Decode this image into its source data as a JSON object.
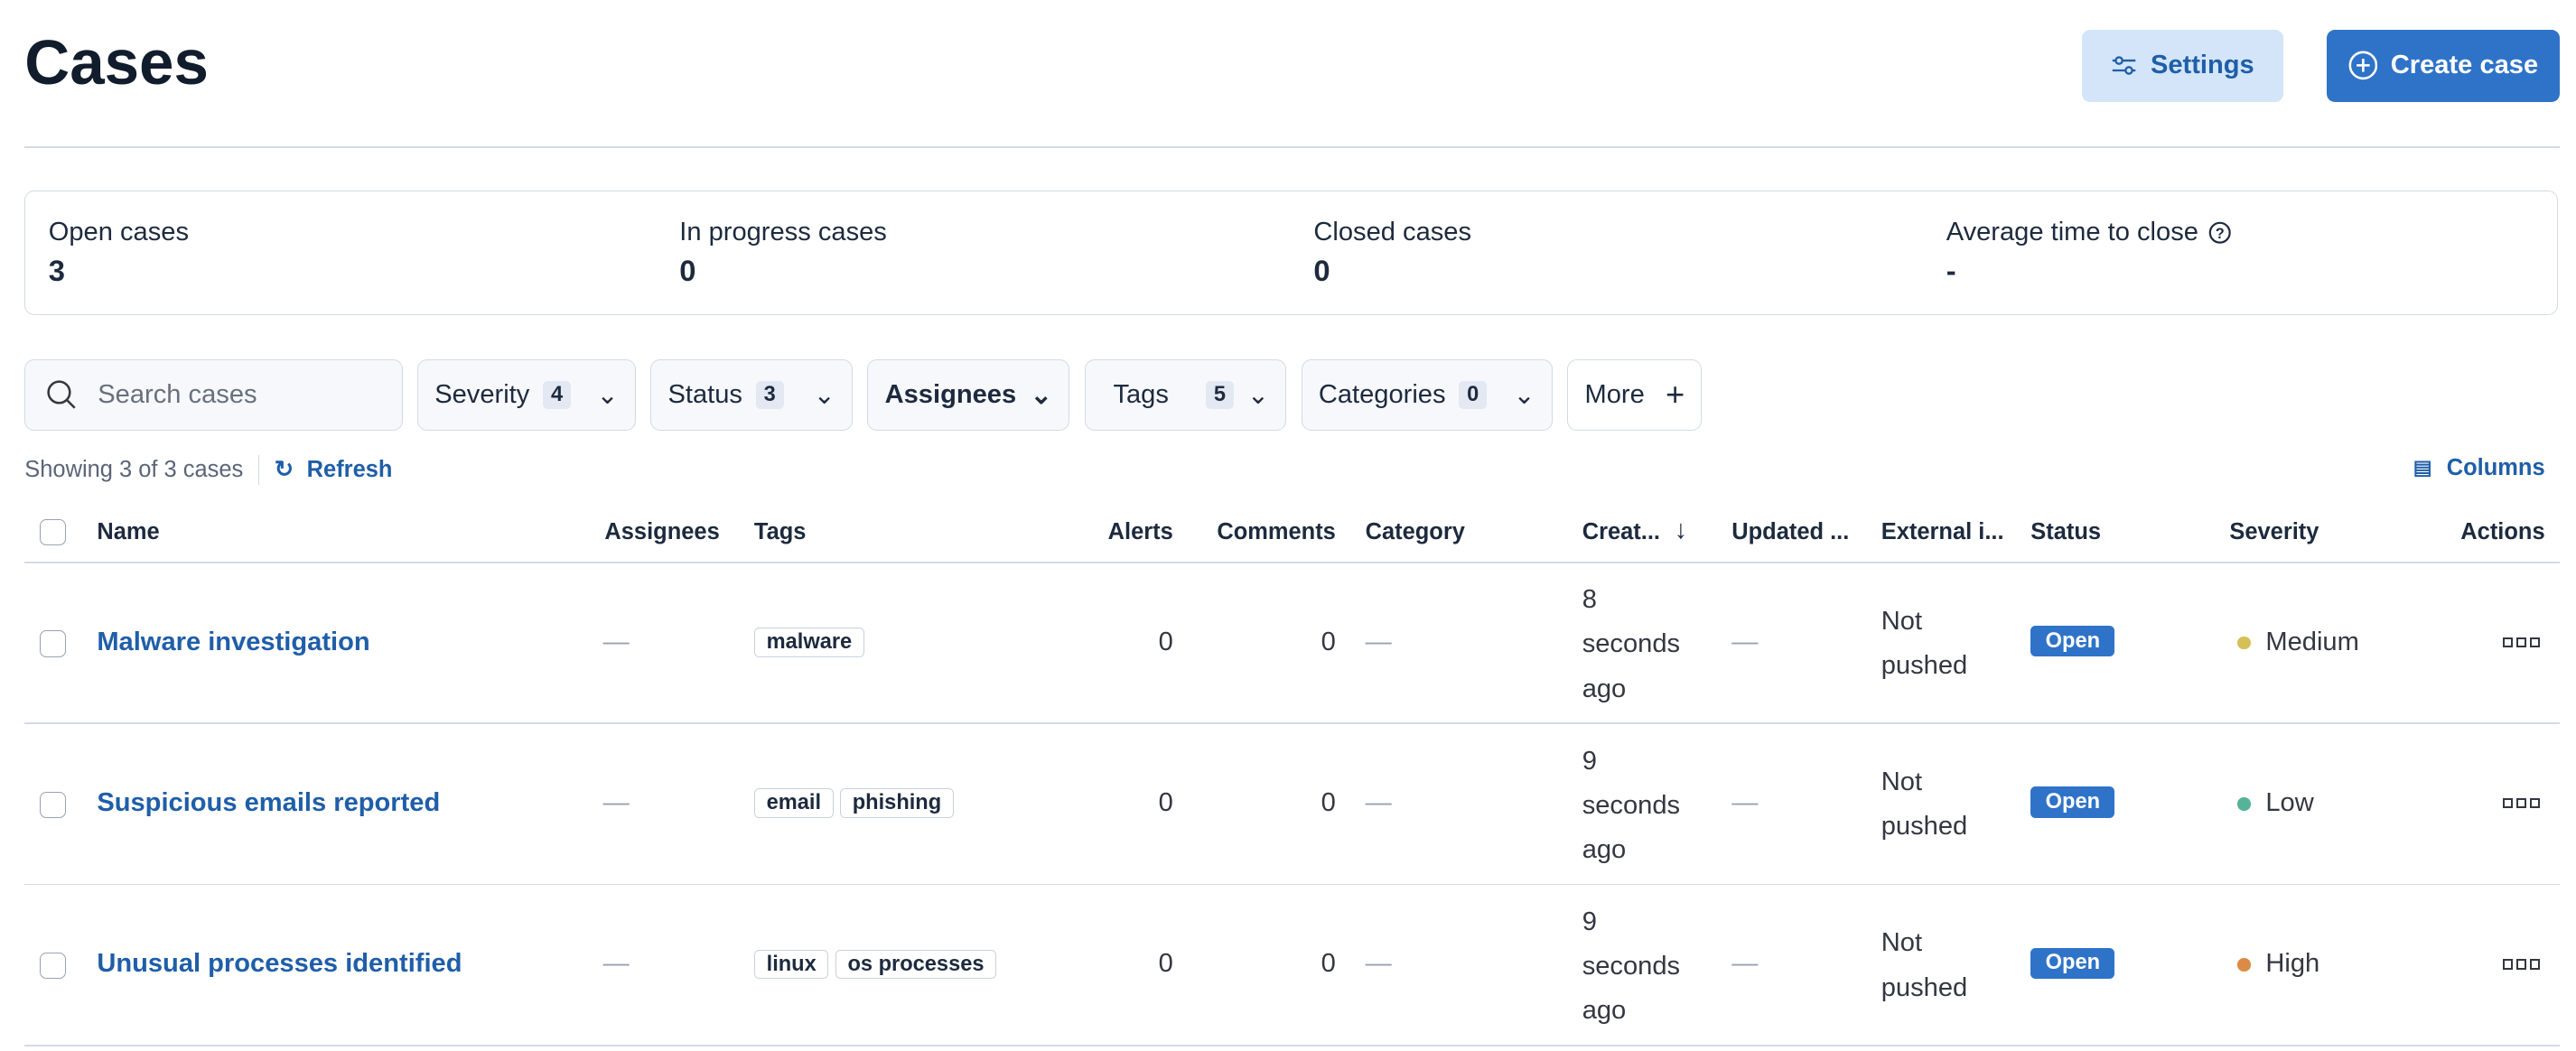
{
  "header": {
    "title": "Cases",
    "settings_label": "Settings",
    "create_label": "Create case"
  },
  "stats": [
    {
      "label": "Open cases",
      "value": "3"
    },
    {
      "label": "In progress cases",
      "value": "0"
    },
    {
      "label": "Closed cases",
      "value": "0"
    },
    {
      "label": "Average time to close",
      "value": "-"
    }
  ],
  "filters": {
    "search_placeholder": "Search cases",
    "severity": {
      "label": "Severity",
      "count": "4"
    },
    "status": {
      "label": "Status",
      "count": "3"
    },
    "assignees": {
      "label": "Assignees"
    },
    "tags": {
      "label": "Tags",
      "count": "5"
    },
    "categories": {
      "label": "Categories",
      "count": "0"
    },
    "more": {
      "label": "More"
    }
  },
  "meta": {
    "showing": "Showing 3 of 3 cases",
    "refresh": "Refresh",
    "columns": "Columns"
  },
  "columns": [
    "Name",
    "Assignees",
    "Tags",
    "Alerts",
    "Comments",
    "Category",
    "Creat...",
    "Updated ...",
    "External i...",
    "Status",
    "Severity",
    "Actions"
  ],
  "severity_colors": {
    "Medium": "#d6bf57",
    "Low": "#54b399",
    "High": "#da8b45"
  },
  "rows": [
    {
      "name": "Malware investigation",
      "assignees": "—",
      "tags": [
        "malware"
      ],
      "alerts": "0",
      "comments": "0",
      "category": "—",
      "created": [
        "8",
        "seconds",
        "ago"
      ],
      "updated": "—",
      "external": [
        "Not",
        "pushed"
      ],
      "status": "Open",
      "severity": "Medium"
    },
    {
      "name": "Suspicious emails reported",
      "assignees": "—",
      "tags": [
        "email",
        "phishing"
      ],
      "alerts": "0",
      "comments": "0",
      "category": "—",
      "created": [
        "9",
        "seconds",
        "ago"
      ],
      "updated": "—",
      "external": [
        "Not",
        "pushed"
      ],
      "status": "Open",
      "severity": "Low"
    },
    {
      "name": "Unusual processes identified",
      "assignees": "—",
      "tags": [
        "linux",
        "os processes"
      ],
      "alerts": "0",
      "comments": "0",
      "category": "—",
      "created": [
        "9",
        "seconds",
        "ago"
      ],
      "updated": "—",
      "external": [
        "Not",
        "pushed"
      ],
      "status": "Open",
      "severity": "High"
    }
  ]
}
